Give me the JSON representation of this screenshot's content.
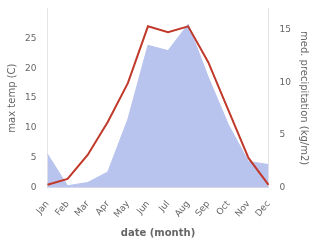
{
  "chart_data": {
    "type": "line",
    "xlabel": "date (month)",
    "ylabel": "max temp (C)",
    "y2label": "med. precipitation (kg/m2)",
    "categories": [
      "Jan",
      "Feb",
      "Mar",
      "Apr",
      "May",
      "Jun",
      "Jul",
      "Aug",
      "Sep",
      "Oct",
      "Nov",
      "Dec"
    ],
    "series": [
      {
        "type": "area",
        "axis": "y2",
        "color": "#b8c4ee",
        "values": [
          3.2,
          0.2,
          0.5,
          1.5,
          6.5,
          13.5,
          13.0,
          15.5,
          10.5,
          6.0,
          2.5,
          2.2
        ]
      },
      {
        "type": "line",
        "color": "#c0392b",
        "values": [
          0.5,
          1.5,
          5.5,
          11.0,
          17.5,
          27.0,
          26.0,
          27.0,
          21.0,
          13.0,
          5.0,
          0.5
        ]
      }
    ],
    "ylim": [
      0,
      30
    ],
    "yticks": [
      0,
      5,
      10,
      15,
      20,
      25
    ],
    "y2lim": [
      0,
      17
    ],
    "y2ticks": [
      0,
      5,
      10,
      15
    ],
    "grid": false
  }
}
